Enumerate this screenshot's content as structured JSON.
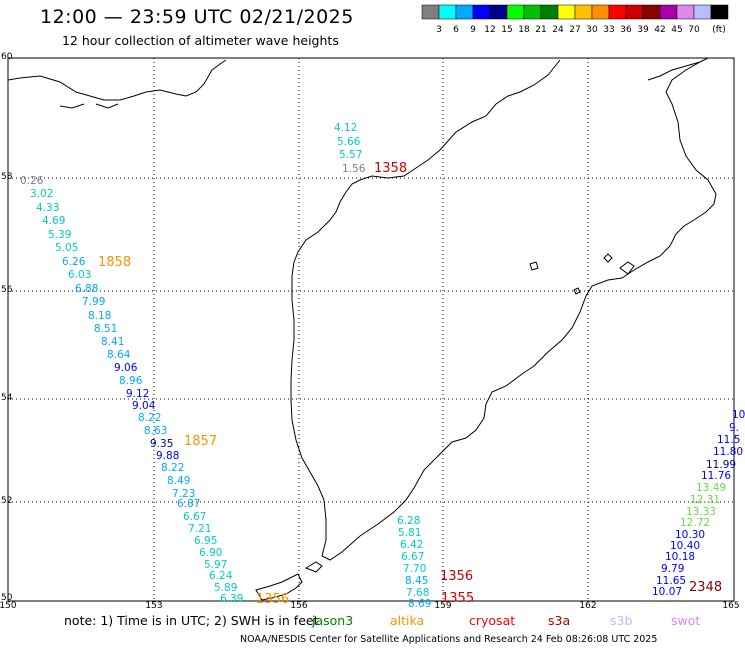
{
  "header": {
    "title": "12:00 — 23:59 UTC 02/21/2025",
    "subtitle": "12 hour collection of altimeter wave heights"
  },
  "colorbar": {
    "colors": [
      "#7f7f7f",
      "#00ffff",
      "#00aaff",
      "#0000ff",
      "#00008b",
      "#00ff00",
      "#00c000",
      "#008000",
      "#ffff00",
      "#ffc000",
      "#ff9000",
      "#ff0000",
      "#cc0000",
      "#8b0000",
      "#aa00aa",
      "#dd88ee",
      "#bbbbff",
      "#000000"
    ],
    "ticks": [
      "3",
      "6",
      "9",
      "12",
      "15",
      "18",
      "21",
      "24",
      "27",
      "30",
      "33",
      "36",
      "39",
      "42",
      "45",
      "70",
      "(ft)"
    ]
  },
  "axes": {
    "lat_labels": [
      "60",
      "58",
      "56",
      "54",
      "52",
      "50"
    ],
    "lon_labels": [
      "150",
      "153",
      "156",
      "159",
      "162",
      "165"
    ]
  },
  "wave_heights": {
    "track_a": [
      "0.26",
      "3.02",
      "4.33",
      "4.69",
      "5.39",
      "5.05",
      "6.26",
      "6.03",
      "6.88",
      "7.99",
      "8.18",
      "8.51",
      "8.41",
      "8.64",
      "9.06",
      "8.96",
      "9.12",
      "9.04",
      "8.22",
      "8.63",
      "9.35",
      "9.88",
      "8.22",
      "8.49",
      "7.23",
      "6.87",
      "6.67",
      "7.21",
      "6.95",
      "6.90",
      "5.97",
      "6.24",
      "5.89",
      "6.39"
    ],
    "track_b": [
      "4.12",
      "5.66",
      "5.57",
      "1.56"
    ],
    "track_c": [
      "6.28",
      "5.81",
      "6.42",
      "6.67",
      "7.70",
      "8.45",
      "7.68",
      "8.69"
    ],
    "track_d": [
      "10",
      "9.",
      "11.5",
      "11.80",
      "11.99",
      "11.76",
      "13.49",
      "12.31",
      "13.33",
      "12.72",
      "10.30",
      "10.40",
      "10.18",
      "9.79",
      "11.65",
      "10.07"
    ]
  },
  "pass_times": {
    "t1858": "1858",
    "t1857": "1857",
    "t1358": "1358",
    "t1356": "1356",
    "t1355": "1355",
    "t2348": "2348",
    "t1356b": "1356"
  },
  "footer": {
    "note": "note:  1) Time is in UTC;  2) SWH is in feet",
    "legend": [
      "jason3",
      "altika",
      "cryosat",
      "s3a",
      "s3b",
      "swot"
    ],
    "legend_colors": [
      "#008000",
      "#ff9000",
      "#ff0000",
      "#aa0000",
      "#bbbbff",
      "#dd88ee"
    ],
    "credit": "NOAA/NESDIS Center for Satellite Applications and Research     24 Feb 08:26:08 UTC 2025"
  }
}
